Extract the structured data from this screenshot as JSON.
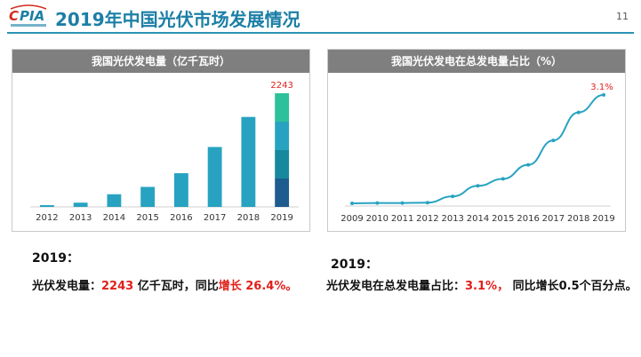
{
  "header": {
    "title": "2019年中国光伏市场发展情况",
    "page_number": "11",
    "logo_text": "CPIA"
  },
  "left_panel": {
    "title": "我国光伏发电量（亿千瓦时）"
  },
  "right_panel": {
    "title": "我国光伏发电在总发电量占比（%）"
  },
  "chart_data": [
    {
      "type": "bar",
      "title": "我国光伏发电量（亿千瓦时）",
      "categories": [
        "2012",
        "2013",
        "2014",
        "2015",
        "2016",
        "2017",
        "2018",
        "2019"
      ],
      "values": [
        36,
        84,
        250,
        395,
        665,
        1182,
        1775,
        2243
      ],
      "data_labels": {
        "2019": "2243"
      },
      "ylim": [
        0,
        2400
      ],
      "grid": false,
      "colors": {
        "bar": "#27a3c1",
        "label": "#e0201b"
      },
      "highlight_2019_segments": [
        "#1e5b8f",
        "#17899e",
        "#27a3c1",
        "#2cc19a"
      ]
    },
    {
      "type": "line",
      "title": "我国光伏发电在总发电量占比（%）",
      "categories": [
        "2009",
        "2010",
        "2011",
        "2012",
        "2013",
        "2014",
        "2015",
        "2016",
        "2017",
        "2018",
        "2019"
      ],
      "values": [
        0.0,
        0.01,
        0.01,
        0.02,
        0.2,
        0.5,
        0.7,
        1.1,
        1.8,
        2.6,
        3.1
      ],
      "data_labels": {
        "2019": "3.1%"
      },
      "ylim": [
        0,
        3.3
      ],
      "grid": false,
      "colors": {
        "line": "#27a3c1",
        "label": "#e0201b"
      }
    }
  ],
  "notes": {
    "left_year": "2019：",
    "left_prefix": "光伏发电量：",
    "left_value": "2243",
    "left_mid": " 亿千瓦时，同比",
    "left_growth": "增长 26.4%。",
    "right_year": "2019：",
    "right_prefix": "光伏发电在总发电量占比：",
    "right_value": "3.1%，",
    "right_suffix": " 同比增长0.5个百分点。"
  }
}
